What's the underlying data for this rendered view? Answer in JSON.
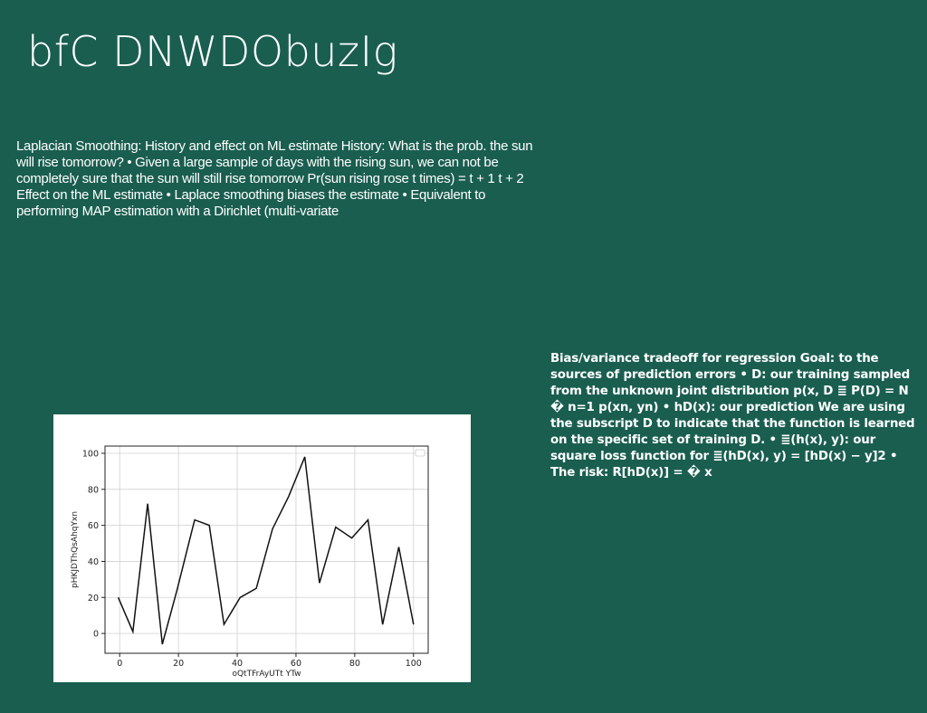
{
  "slide": {
    "title": "bfC DNWDObuzIg",
    "left_text": "Laplacian Smoothing: History and effect on ML estimate History: What is the prob. the sun will rise tomorrow? • Given a large sample of days with the rising sun, we can not be completely sure that the sun will still rise tomorrow Pr(sun rising rose t times) = t + 1 t + 2 Effect on the ML estimate • Laplace smoothing biases the estimate • Equivalent to performing MAP estimation with a Dirichlet (multi-variate",
    "right_text": "Bias/variance tradeoff for regression Goal: to the sources of prediction errors • D: our training sampled from the unknown joint distribution p(x, D ≣ P(D) = N � n=1 p(xn, yn) • hD(x): our prediction We are using the subscript D to indicate that the function is learned on the specific set of training D. • ≣(h(x), y): our square loss function for ≣(hD(x), y) = [hD(x) − y]2 • The risk: R[hD(x)] = � x"
  },
  "colors": {
    "background": "#1a5e50",
    "text": "#ffffff",
    "chart_line": "#111111",
    "chart_grid": "#d0d0d0"
  },
  "chart_data": {
    "type": "line",
    "xlabel": "oQtTFrAyUTt YTw",
    "ylabel": "pHKJDThQsAhqYxn",
    "xlim": [
      -5,
      105
    ],
    "ylim": [
      -11,
      104
    ],
    "xticks": [
      0,
      20,
      40,
      60,
      80,
      100
    ],
    "yticks": [
      0,
      20,
      40,
      60,
      80,
      100
    ],
    "grid": true,
    "legend": "top-right (empty)",
    "x": [
      -0.5,
      4.5,
      9.5,
      14.5,
      19.5,
      25.5,
      30.5,
      35.5,
      41,
      46.5,
      52,
      57.5,
      63,
      68,
      73.5,
      79,
      84.5,
      89.5,
      95,
      100
    ],
    "y": [
      20,
      1,
      72,
      -6,
      24,
      63,
      60,
      5,
      20,
      25,
      58,
      76,
      98,
      28,
      59,
      53,
      63,
      5,
      48,
      5
    ]
  }
}
